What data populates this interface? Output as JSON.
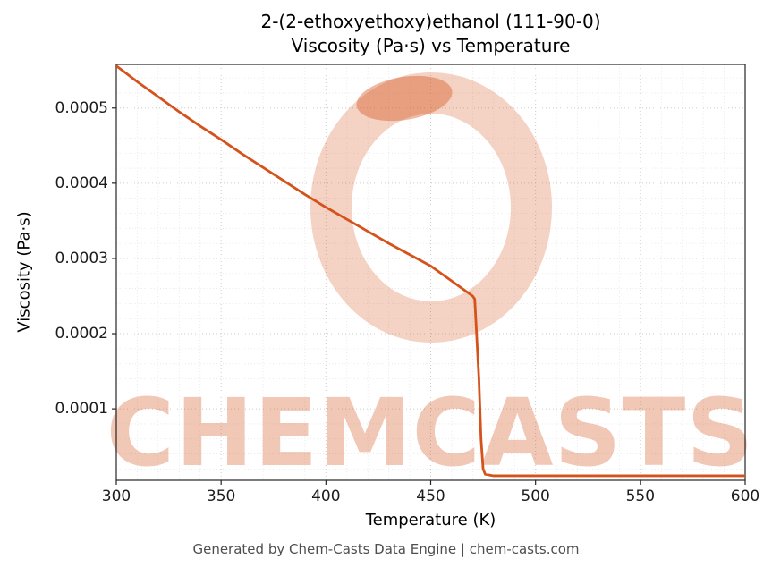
{
  "title": {
    "line1": "2-(2-ethoxyethoxy)ethanol (111-90-0)",
    "line2": "Viscosity (Pa·s) vs Temperature"
  },
  "footer": "Generated by Chem-Casts Data Engine | chem-casts.com",
  "watermark": {
    "text": "CHEMCASTS",
    "color": "#d5521b",
    "text_opacity": 0.32,
    "logo_ring_opacity": 0.26,
    "logo_blob_opacity": 0.4
  },
  "chart_data": {
    "type": "line",
    "title": "2-(2-ethoxyethoxy)ethanol (111-90-0) Viscosity (Pa·s) vs Temperature",
    "xlabel": "Temperature (K)",
    "ylabel": "Viscosity (Pa·s)",
    "xlim": [
      300,
      600
    ],
    "ylim": [
      5e-06,
      0.000558
    ],
    "x_ticks": [
      300,
      350,
      400,
      450,
      500,
      550,
      600
    ],
    "y_ticks": [
      0.0001,
      0.0002,
      0.0003,
      0.0004,
      0.0005
    ],
    "y_tick_labels": [
      "0.0001",
      "0.0002",
      "0.0003",
      "0.0004",
      "0.0005"
    ],
    "x_minor_step": 10,
    "y_minor_step": 2e-05,
    "grid": true,
    "legend": "none",
    "line_color": "#d5521b",
    "series": [
      {
        "name": "viscosity",
        "x": [
          300,
          310,
          320,
          330,
          340,
          350,
          360,
          370,
          380,
          390,
          400,
          410,
          420,
          430,
          440,
          450,
          460,
          470,
          471,
          473,
          474,
          475,
          476,
          480,
          490,
          510,
          540,
          570,
          600
        ],
        "y": [
          0.000556,
          0.000535,
          0.000515,
          0.000495,
          0.000476,
          0.000458,
          0.000439,
          0.000421,
          0.000403,
          0.000385,
          0.000368,
          0.000352,
          0.000336,
          0.00032,
          0.000305,
          0.00029,
          0.00027,
          0.00025,
          0.000246,
          0.00014,
          6e-05,
          2e-05,
          1.3e-05,
          1.1e-05,
          1.1e-05,
          1.1e-05,
          1.1e-05,
          1.1e-05,
          1.1e-05
        ]
      }
    ]
  }
}
